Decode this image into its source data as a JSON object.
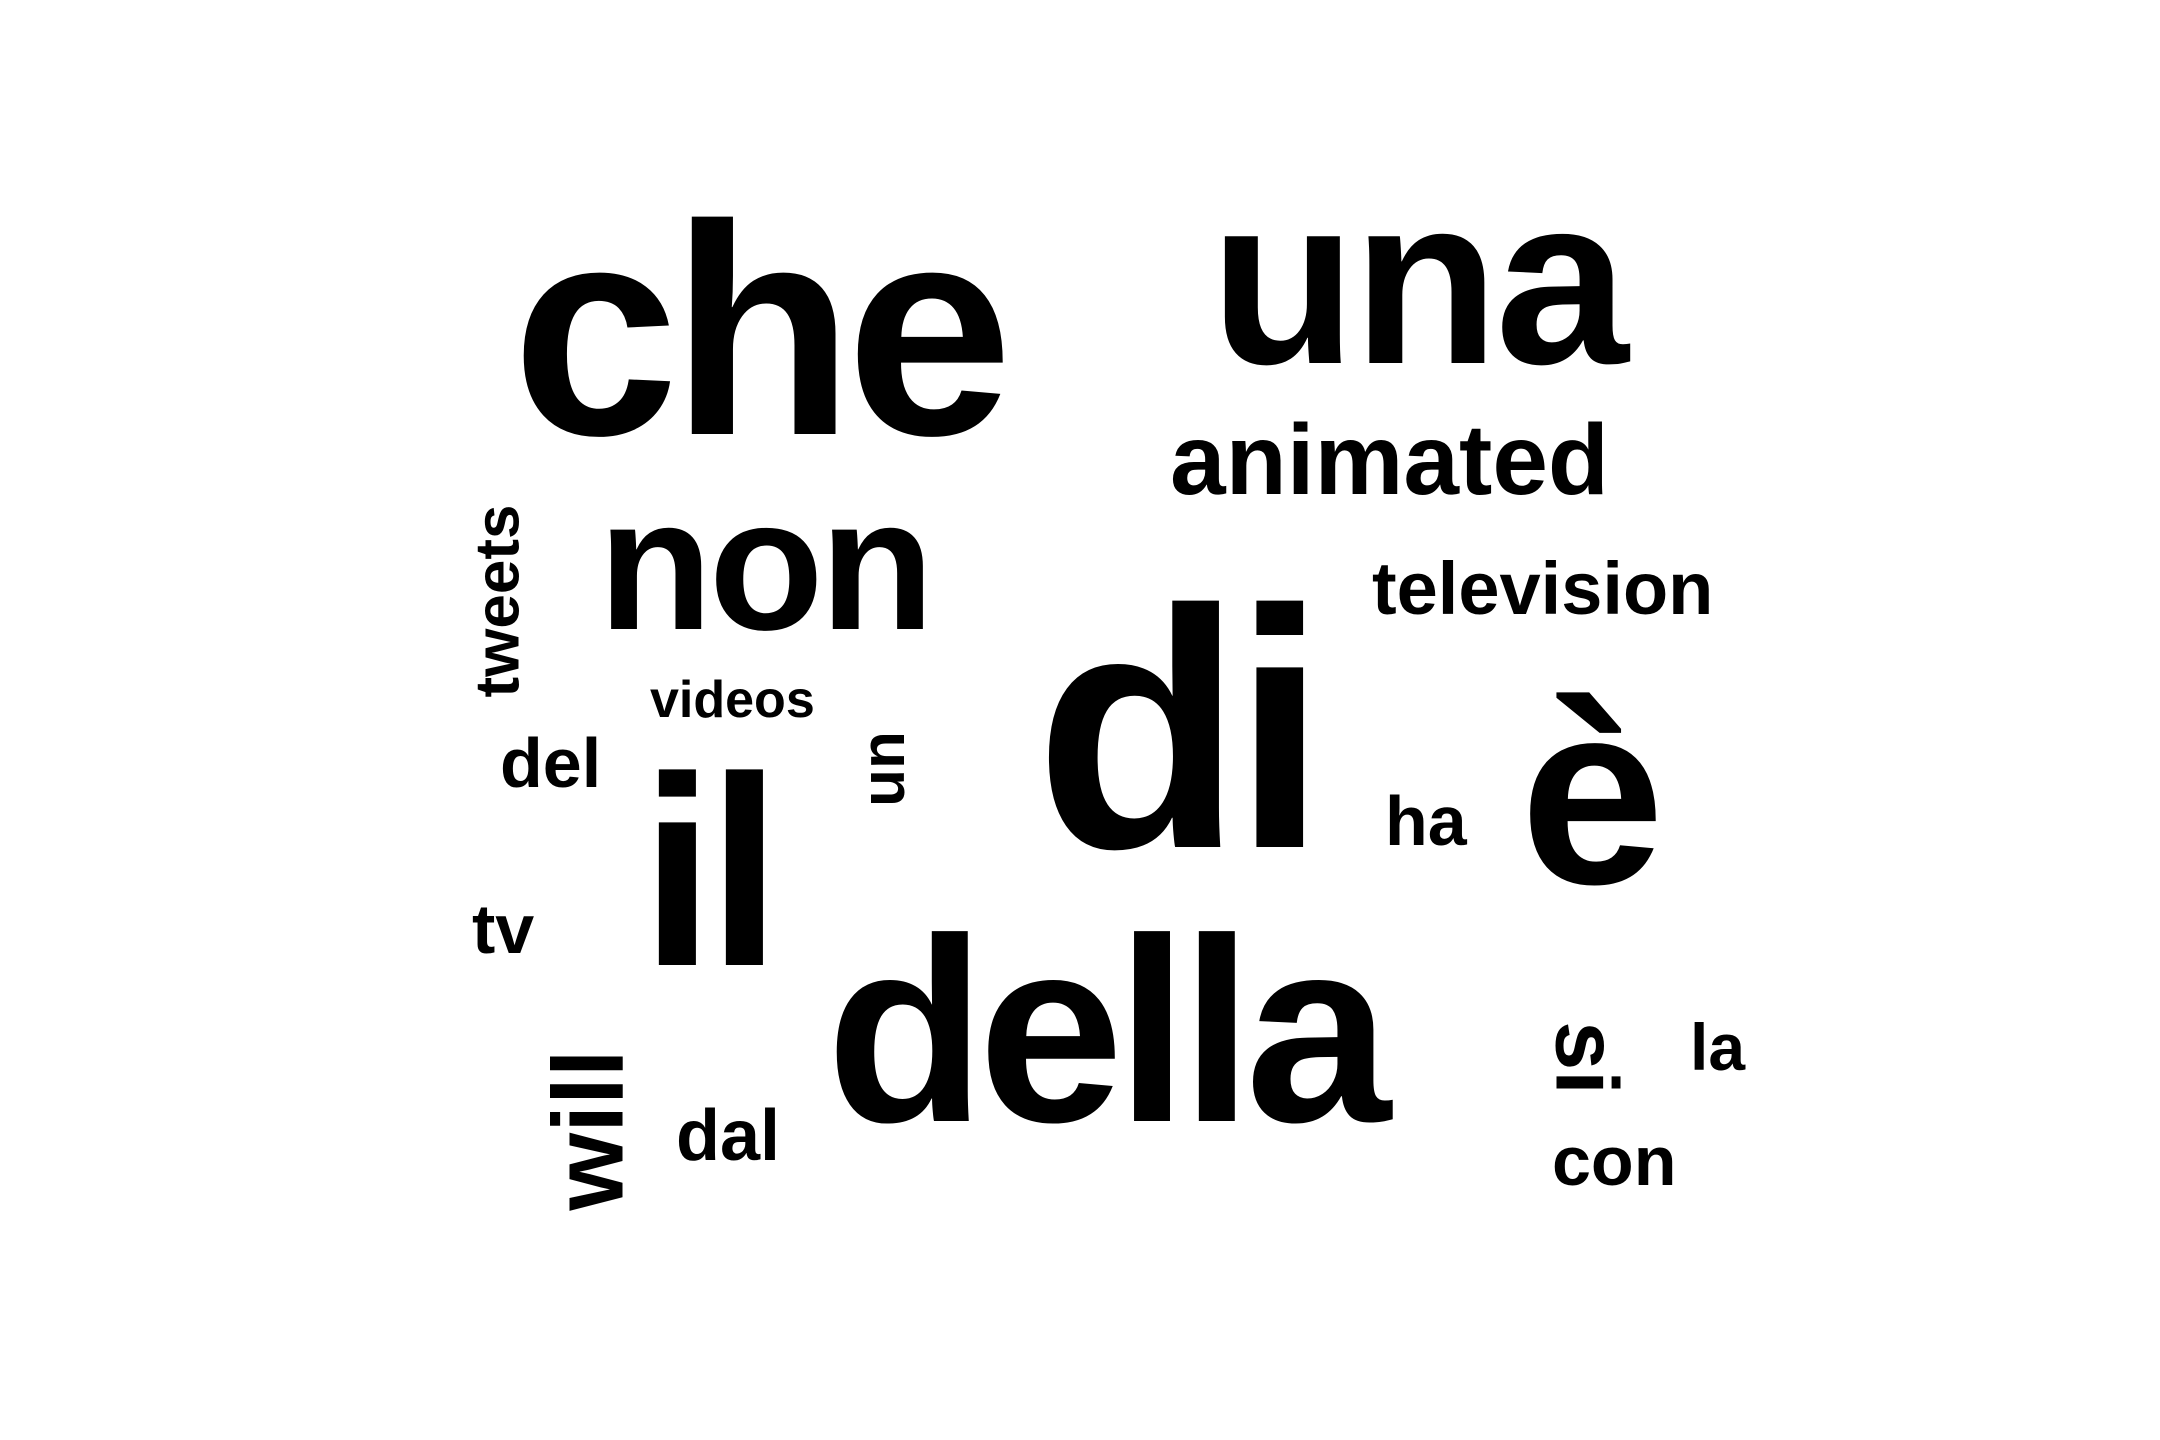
{
  "words": [
    {
      "key": "che",
      "text": "che"
    },
    {
      "key": "una",
      "text": "una"
    },
    {
      "key": "animated",
      "text": "animated"
    },
    {
      "key": "non",
      "text": "non"
    },
    {
      "key": "tweets",
      "text": "tweets"
    },
    {
      "key": "television",
      "text": "television"
    },
    {
      "key": "di",
      "text": "di"
    },
    {
      "key": "videos",
      "text": "videos"
    },
    {
      "key": "del",
      "text": "del"
    },
    {
      "key": "un",
      "text": "un"
    },
    {
      "key": "il",
      "text": "il"
    },
    {
      "key": "ha",
      "text": "ha"
    },
    {
      "key": "e_grave",
      "text": "è"
    },
    {
      "key": "tv",
      "text": "tv"
    },
    {
      "key": "della",
      "text": "della"
    },
    {
      "key": "will",
      "text": "will"
    },
    {
      "key": "dal",
      "text": "dal"
    },
    {
      "key": "si",
      "text": "si"
    },
    {
      "key": "la",
      "text": "la"
    },
    {
      "key": "con",
      "text": "con"
    }
  ],
  "colors": {
    "background": "#ffffff",
    "text": "#000000"
  }
}
